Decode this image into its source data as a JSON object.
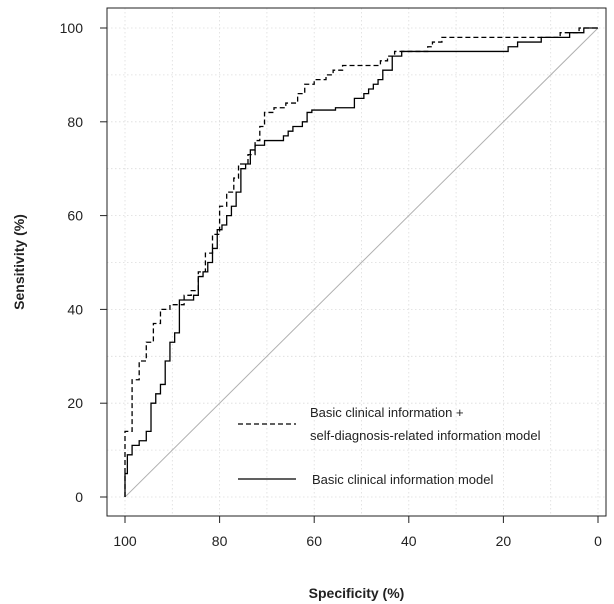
{
  "chart_data": {
    "type": "line",
    "title": "",
    "xlabel": "Specificity (%)",
    "ylabel": "Sensitivity (%)",
    "xlim": [
      100,
      0
    ],
    "ylim": [
      0,
      100
    ],
    "x_reversed": true,
    "xticks": [
      100,
      80,
      60,
      40,
      20,
      0
    ],
    "yticks": [
      0,
      20,
      40,
      60,
      80,
      100
    ],
    "grid": true,
    "legend_position": "bottom-right",
    "reference_line": {
      "from": [
        100,
        0
      ],
      "to": [
        0,
        100
      ],
      "color": "#b0b0b0"
    },
    "series": [
      {
        "name": "Basic clinical information + self-diagnosis-related information model",
        "line_style": "dashed",
        "color": "#000000",
        "points": [
          [
            100,
            0
          ],
          [
            100,
            14
          ],
          [
            98.5,
            14
          ],
          [
            98.5,
            25
          ],
          [
            97,
            25
          ],
          [
            97,
            29
          ],
          [
            95.5,
            29
          ],
          [
            95.5,
            33
          ],
          [
            94,
            33
          ],
          [
            94,
            37
          ],
          [
            92.5,
            37
          ],
          [
            92.5,
            40
          ],
          [
            90.5,
            40
          ],
          [
            90.5,
            41
          ],
          [
            87.5,
            41
          ],
          [
            87.5,
            43
          ],
          [
            86,
            43
          ],
          [
            86,
            44
          ],
          [
            84.5,
            44
          ],
          [
            84.5,
            48
          ],
          [
            83,
            48
          ],
          [
            83,
            52
          ],
          [
            81.5,
            52
          ],
          [
            81.5,
            56
          ],
          [
            80,
            56
          ],
          [
            80,
            62
          ],
          [
            78.5,
            62
          ],
          [
            78.5,
            65
          ],
          [
            77,
            65
          ],
          [
            77,
            68
          ],
          [
            76,
            68
          ],
          [
            76,
            71
          ],
          [
            74,
            71
          ],
          [
            74,
            73
          ],
          [
            72.5,
            73
          ],
          [
            72.5,
            76
          ],
          [
            71.5,
            76
          ],
          [
            71.5,
            79
          ],
          [
            70.5,
            79
          ],
          [
            70.5,
            82
          ],
          [
            68.5,
            82
          ],
          [
            68.5,
            83
          ],
          [
            66,
            83
          ],
          [
            66,
            84
          ],
          [
            63.5,
            84
          ],
          [
            63.5,
            86
          ],
          [
            62,
            86
          ],
          [
            62,
            88
          ],
          [
            60,
            88
          ],
          [
            60,
            89
          ],
          [
            57.5,
            89
          ],
          [
            57.5,
            90
          ],
          [
            56,
            90
          ],
          [
            56,
            91
          ],
          [
            54,
            91
          ],
          [
            54,
            92
          ],
          [
            46,
            92
          ],
          [
            46,
            93
          ],
          [
            44.5,
            93
          ],
          [
            44.5,
            94
          ],
          [
            43,
            94
          ],
          [
            43,
            95
          ],
          [
            36,
            95
          ],
          [
            36,
            96
          ],
          [
            35,
            96
          ],
          [
            35,
            97
          ],
          [
            33,
            97
          ],
          [
            33,
            98
          ],
          [
            8,
            98
          ],
          [
            8,
            99
          ],
          [
            4,
            99
          ],
          [
            4,
            100
          ],
          [
            0,
            100
          ]
        ]
      },
      {
        "name": "Basic clinical information model",
        "line_style": "solid",
        "color": "#000000",
        "points": [
          [
            100,
            0
          ],
          [
            100,
            5
          ],
          [
            99.5,
            5
          ],
          [
            99.5,
            9
          ],
          [
            98.5,
            9
          ],
          [
            98.5,
            11
          ],
          [
            97,
            11
          ],
          [
            97,
            12
          ],
          [
            95.5,
            12
          ],
          [
            95.5,
            14
          ],
          [
            94.5,
            14
          ],
          [
            94.5,
            20
          ],
          [
            93.5,
            20
          ],
          [
            93.5,
            22
          ],
          [
            92.5,
            22
          ],
          [
            92.5,
            24
          ],
          [
            91.5,
            24
          ],
          [
            91.5,
            29
          ],
          [
            90.5,
            29
          ],
          [
            90.5,
            33
          ],
          [
            89.5,
            33
          ],
          [
            89.5,
            35
          ],
          [
            88.5,
            35
          ],
          [
            88.5,
            42
          ],
          [
            85.5,
            42
          ],
          [
            85.5,
            43
          ],
          [
            84.5,
            43
          ],
          [
            84.5,
            47
          ],
          [
            83.5,
            47
          ],
          [
            83.5,
            48
          ],
          [
            82.5,
            48
          ],
          [
            82.5,
            50
          ],
          [
            81.5,
            50
          ],
          [
            81.5,
            53
          ],
          [
            80.5,
            53
          ],
          [
            80.5,
            57
          ],
          [
            79.5,
            57
          ],
          [
            79.5,
            58
          ],
          [
            78.5,
            58
          ],
          [
            78.5,
            60
          ],
          [
            77.5,
            60
          ],
          [
            77.5,
            62
          ],
          [
            76.5,
            62
          ],
          [
            76.5,
            65
          ],
          [
            75.5,
            65
          ],
          [
            75.5,
            70
          ],
          [
            74.5,
            70
          ],
          [
            74.5,
            71
          ],
          [
            73.5,
            71
          ],
          [
            73.5,
            74
          ],
          [
            72.5,
            74
          ],
          [
            72.5,
            75
          ],
          [
            70.5,
            75
          ],
          [
            70.5,
            76
          ],
          [
            66.5,
            76
          ],
          [
            66.5,
            77
          ],
          [
            65.5,
            77
          ],
          [
            65.5,
            78
          ],
          [
            64.5,
            78
          ],
          [
            64.5,
            79
          ],
          [
            62.5,
            79
          ],
          [
            62.5,
            80
          ],
          [
            61.5,
            80
          ],
          [
            61.5,
            82
          ],
          [
            60.5,
            82
          ],
          [
            60.5,
            82.5
          ],
          [
            55.5,
            82.5
          ],
          [
            55.5,
            83
          ],
          [
            51.5,
            83
          ],
          [
            51.5,
            85
          ],
          [
            49.5,
            85
          ],
          [
            49.5,
            86
          ],
          [
            48.5,
            86
          ],
          [
            48.5,
            87
          ],
          [
            47.5,
            87
          ],
          [
            47.5,
            88
          ],
          [
            46.5,
            88
          ],
          [
            46.5,
            89
          ],
          [
            45.5,
            89
          ],
          [
            45.5,
            91
          ],
          [
            43.5,
            91
          ],
          [
            43.5,
            94
          ],
          [
            41.5,
            94
          ],
          [
            41.5,
            95
          ],
          [
            19,
            95
          ],
          [
            19,
            96
          ],
          [
            17,
            96
          ],
          [
            17,
            97
          ],
          [
            12,
            97
          ],
          [
            12,
            98
          ],
          [
            6,
            98
          ],
          [
            6,
            99
          ],
          [
            3,
            99
          ],
          [
            3,
            100
          ],
          [
            0,
            100
          ]
        ]
      }
    ]
  }
}
